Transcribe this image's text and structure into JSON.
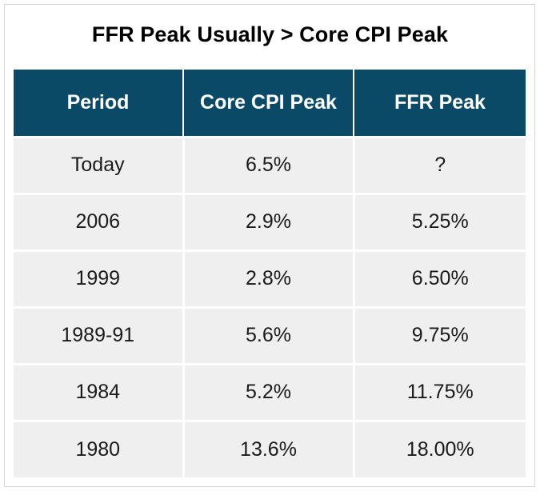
{
  "chart_data": {
    "type": "table",
    "title": "FFR Peak Usually > Core CPI Peak",
    "columns": [
      "Period",
      "Core CPI Peak",
      "FFR Peak"
    ],
    "rows": [
      [
        "Today",
        "6.5%",
        "?"
      ],
      [
        "2006",
        "2.9%",
        "5.25%"
      ],
      [
        "1999",
        "2.8%",
        "6.50%"
      ],
      [
        "1989-91",
        "5.6%",
        "9.75%"
      ],
      [
        "1984",
        "5.2%",
        "11.75%"
      ],
      [
        "1980",
        "13.6%",
        "18.00%"
      ]
    ],
    "colors": {
      "header_bg": "#0b4a66",
      "header_text": "#ffffff",
      "cell_bg": "#efefef",
      "cell_text": "#1a1a1a"
    }
  }
}
